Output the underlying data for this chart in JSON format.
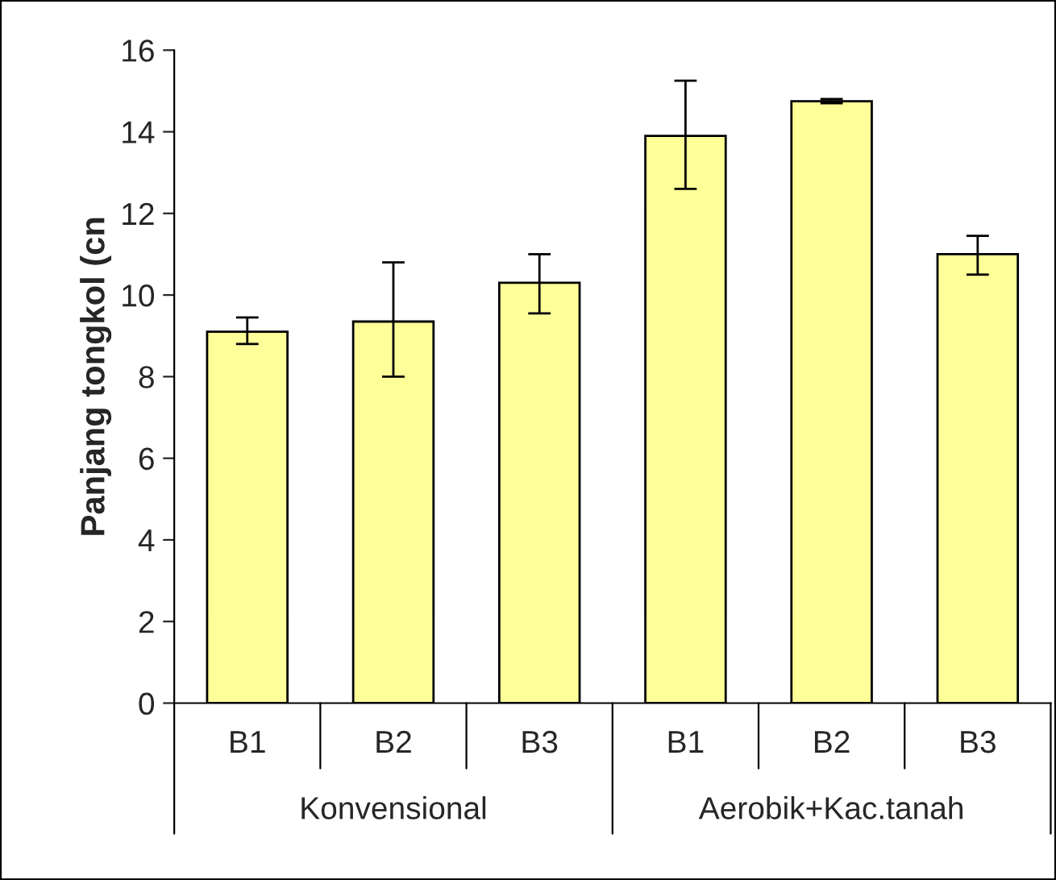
{
  "chart_data": {
    "type": "bar",
    "ylabel": "Panjang tongkol (cn",
    "categories": [
      "B1",
      "B2",
      "B3",
      "B1",
      "B2",
      "B3"
    ],
    "values": [
      9.1,
      9.35,
      10.3,
      13.9,
      14.75,
      11.0
    ],
    "errors": [
      [
        8.8,
        9.45
      ],
      [
        8.0,
        10.8
      ],
      [
        9.55,
        11.0
      ],
      [
        12.6,
        15.25
      ],
      [
        14.7,
        14.8
      ],
      [
        10.5,
        11.45
      ]
    ],
    "color": "#ffff99",
    "ylim": [
      0,
      16
    ],
    "yticks": [
      0,
      2,
      4,
      6,
      8,
      10,
      12,
      14,
      16
    ],
    "grid": false,
    "legend": false,
    "annotations": [
      "Konvensional",
      "Aerobik+Kac.tanah"
    ]
  }
}
